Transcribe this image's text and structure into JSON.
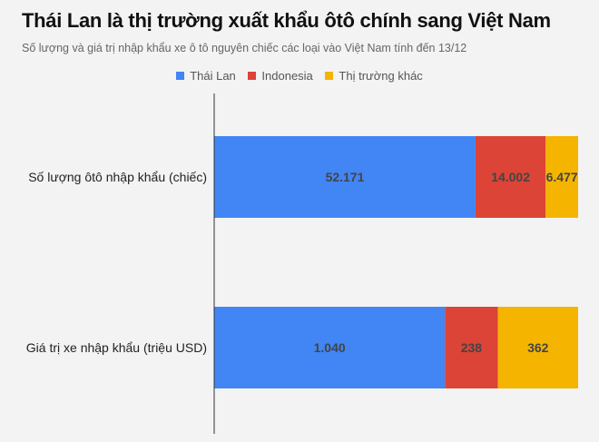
{
  "chart_data": {
    "type": "bar",
    "orientation": "horizontal",
    "stacking": "percent",
    "title": "Thái Lan là thị trường xuất khẩu ôtô chính sang Việt Nam",
    "subtitle": "Số lượng và giá trị nhập khẩu xe ô tô nguyên chiếc các loại vào Việt Nam tính đến 13/12",
    "legend_position": "top",
    "grid": false,
    "categories": [
      "Số lượng ôtô nhập khẩu (chiếc)",
      "Giá trị xe nhập khẩu (triệu USD)"
    ],
    "series": [
      {
        "name": "Thái Lan",
        "color": "#4285f4",
        "values": [
          52171,
          1040
        ],
        "labels": [
          "52.171",
          "1.040"
        ]
      },
      {
        "name": "Indonesia",
        "color": "#db4437",
        "values": [
          14002,
          238
        ],
        "labels": [
          "14.002",
          "238"
        ]
      },
      {
        "name": "Thị trường khác",
        "color": "#f4b400",
        "values": [
          6477,
          362
        ],
        "labels": [
          "6.477",
          "362"
        ]
      }
    ]
  }
}
